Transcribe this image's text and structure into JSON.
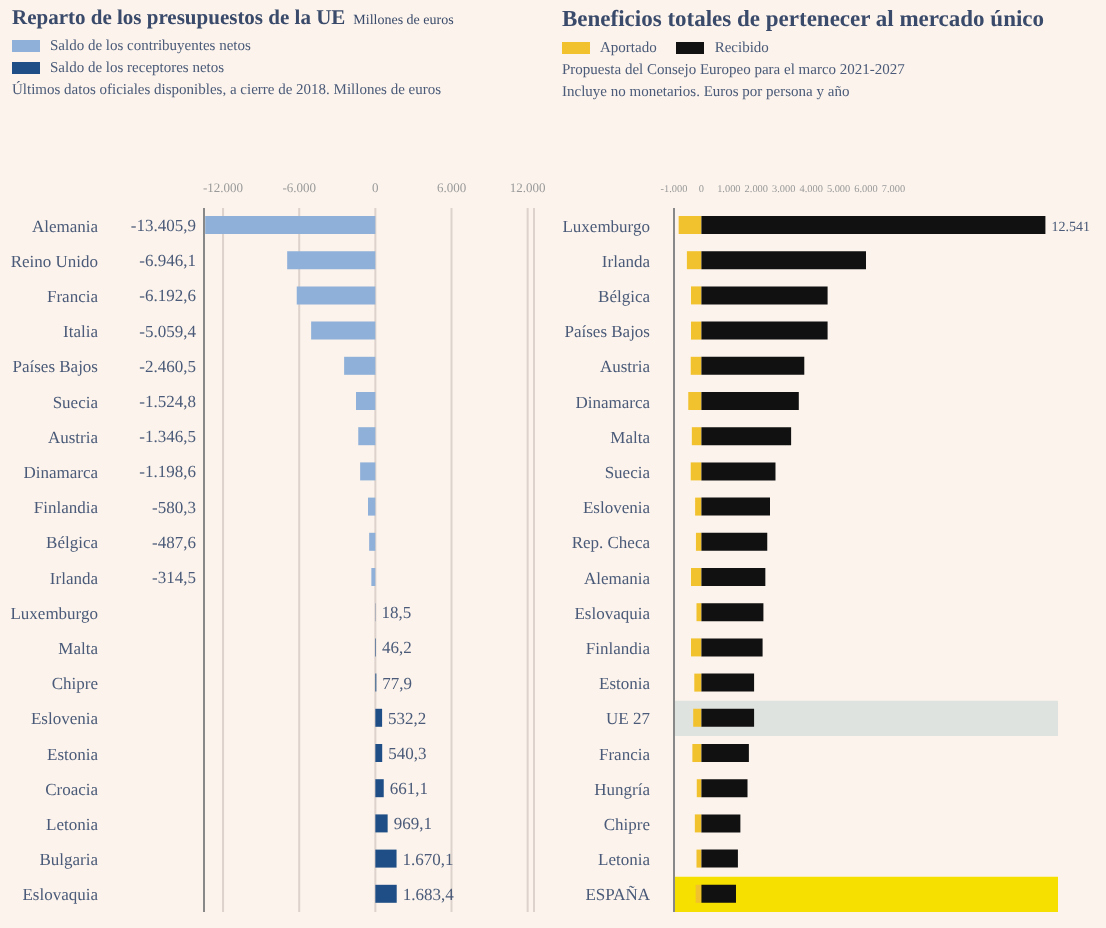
{
  "chart_data": [
    {
      "type": "bar",
      "orientation": "horizontal",
      "stacked": true,
      "title": "Reparto de los presupuestos de la UE",
      "annotations": [
        "Millones de euros"
      ],
      "subtitle": "Últimos datos oficiales disponibles, a cierre de 2018. Millones de euros",
      "categories": [
        "Alemania",
        "Reino Unido",
        "Francia",
        "Italia",
        "Países Bajos",
        "Suecia",
        "Austria",
        "Dinamarca",
        "Finlandia",
        "Bélgica",
        "Irlanda",
        "Luxemburgo",
        "Malta",
        "Chipre",
        "Eslovenia",
        "Estonia",
        "Croacia",
        "Letonia",
        "Bulgaria",
        "Eslovaquia"
      ],
      "series": [
        {
          "name": "Saldo de los contribuyentes netos",
          "color": "#8fb0d9",
          "values": [
            -13405.9,
            -6946.1,
            -6192.6,
            -5059.4,
            -2460.5,
            -1524.8,
            -1346.5,
            -1198.6,
            -580.3,
            -487.6,
            -314.5,
            null,
            null,
            null,
            null,
            null,
            null,
            null,
            null,
            null
          ],
          "value_labels": [
            "-13.405,9",
            "-6.946,1",
            "-6.192,6",
            "-5.059,4",
            "-2.460,5",
            "-1.524,8",
            "-1.346,5",
            "-1.198,6",
            "-580,3",
            "-487,6",
            "-314,5",
            null,
            null,
            null,
            null,
            null,
            null,
            null,
            null,
            null
          ]
        },
        {
          "name": "Saldo de los receptores netos",
          "color": "#1f4e86",
          "values": [
            null,
            null,
            null,
            null,
            null,
            null,
            null,
            null,
            null,
            null,
            null,
            18.5,
            46.2,
            77.9,
            532.2,
            540.3,
            661.1,
            969.1,
            1670.1,
            1683.4
          ],
          "value_labels": [
            null,
            null,
            null,
            null,
            null,
            null,
            null,
            null,
            null,
            null,
            null,
            "18,5",
            "46,2",
            "77,9",
            "532,2",
            "540,3",
            "661,1",
            "969,1",
            "1.670,1",
            "1.683,4"
          ]
        }
      ],
      "xlim": [
        -13500,
        12500
      ],
      "xticks": [
        {
          "value": -12000,
          "label": "-12.000"
        },
        {
          "value": -6000,
          "label": "-6.000"
        },
        0,
        {
          "value": 6000,
          "label": "6.000"
        },
        {
          "value": 12000,
          "label": "12.000"
        }
      ],
      "grid": "x",
      "legend": "top"
    },
    {
      "type": "bar",
      "orientation": "horizontal",
      "stacked": true,
      "title": "Beneficios totales de pertenecer al mercado único",
      "subtitle": "Propuesta del Consejo Europeo para el marco 2021-2027",
      "annotations": [
        "Incluye no monetarios. Euros por persona y año"
      ],
      "categories": [
        "Luxemburgo",
        "Irlanda",
        "Bélgica",
        "Países Bajos",
        "Austria",
        "Dinamarca",
        "Malta",
        "Suecia",
        "Eslovenia",
        "Rep. Checa",
        "Alemania",
        "Eslovaquia",
        "Finlandia",
        "Estonia",
        "UE 27",
        "Francia",
        "Hungría",
        "Chipre",
        "Letonia",
        "ESPAÑA"
      ],
      "series": [
        {
          "name": "Aportado",
          "color": "#f2c12e",
          "values": [
            -830,
            -530,
            -380,
            -380,
            -390,
            -480,
            -350,
            -390,
            -230,
            -200,
            -380,
            -180,
            -380,
            -260,
            -300,
            -330,
            -170,
            -240,
            -180,
            -210
          ]
        },
        {
          "name": "Recibido",
          "color": "#111111",
          "values": [
            12541,
            6000,
            4600,
            4600,
            3750,
            3550,
            3270,
            2700,
            2500,
            2400,
            2330,
            2260,
            2230,
            1920,
            1920,
            1730,
            1680,
            1420,
            1330,
            1260
          ],
          "value_labels": [
            "12.541",
            null,
            null,
            null,
            null,
            null,
            null,
            null,
            null,
            null,
            null,
            null,
            null,
            null,
            null,
            null,
            null,
            null,
            null,
            null
          ]
        }
      ],
      "xlim": [
        -1000,
        13000
      ],
      "xticks": [
        {
          "value": -1000,
          "label": "-1.000"
        },
        0,
        {
          "value": 1000,
          "label": "1.000"
        },
        {
          "value": 2000,
          "label": "2.000"
        },
        {
          "value": 3000,
          "label": "3.000"
        },
        {
          "value": 4000,
          "label": "4.000"
        },
        {
          "value": 5000,
          "label": "5.000"
        },
        {
          "value": 6000,
          "label": "6.000"
        },
        {
          "value": 7000,
          "label": "7.000"
        }
      ],
      "bands": [
        {
          "axis": "y",
          "from": "UE 27",
          "to": "UE 27",
          "color": "#dfe3df"
        },
        {
          "axis": "y",
          "from": "ESPAÑA",
          "to": "ESPAÑA",
          "color": "#f5e000"
        }
      ],
      "grid": false,
      "legend": "top"
    }
  ]
}
